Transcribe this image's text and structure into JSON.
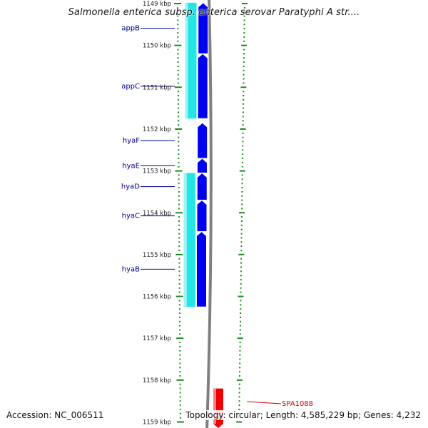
{
  "title": "Salmonella enterica subsp. enterica serovar Paratyphi A str....",
  "footer": {
    "accession": "Accession: NC_006511",
    "topology": "Topology: circular; Length: 4,585,229 bp; Genes: 4,232"
  },
  "colors": {
    "gene_forward": "#0000ee",
    "gene_highlight": "#22e5e5",
    "gene_reverse": "#ee0000",
    "tick": "#1a8a1a",
    "label": "#00008b",
    "label_red": "#dd0000",
    "backbone": "#808080"
  },
  "ruler": {
    "unit": "kbp",
    "ticks": [
      "1149 kbp",
      "1150 kbp",
      "1151 kbp",
      "1152 kbp",
      "1153 kbp",
      "1154 kbp",
      "1155 kbp",
      "1156 kbp",
      "1157 kbp",
      "1158 kbp",
      "1159 kbp"
    ]
  },
  "genes": [
    {
      "name": "appB",
      "strand": "forward",
      "start_kbp": 1148.98,
      "end_kbp": 1150.2
    },
    {
      "name": "appC",
      "strand": "forward",
      "start_kbp": 1150.2,
      "end_kbp": 1151.75
    },
    {
      "name": "hyaF",
      "strand": "forward",
      "start_kbp": 1151.85,
      "end_kbp": 1152.7
    },
    {
      "name": "hyaE",
      "strand": "forward",
      "start_kbp": 1152.7,
      "end_kbp": 1153.05
    },
    {
      "name": "hyaD",
      "strand": "forward",
      "start_kbp": 1153.05,
      "end_kbp": 1153.7
    },
    {
      "name": "hyaC",
      "strand": "forward",
      "start_kbp": 1153.7,
      "end_kbp": 1154.45
    },
    {
      "name": "hyaB",
      "strand": "forward",
      "start_kbp": 1154.45,
      "end_kbp": 1156.25
    },
    {
      "name": "SPA1088",
      "strand": "reverse",
      "start_kbp": 1158.2,
      "end_kbp": 1159.15
    }
  ],
  "highlights": [
    {
      "start_kbp": 1148.98,
      "end_kbp": 1151.75
    },
    {
      "start_kbp": 1153.05,
      "end_kbp": 1156.25
    }
  ]
}
